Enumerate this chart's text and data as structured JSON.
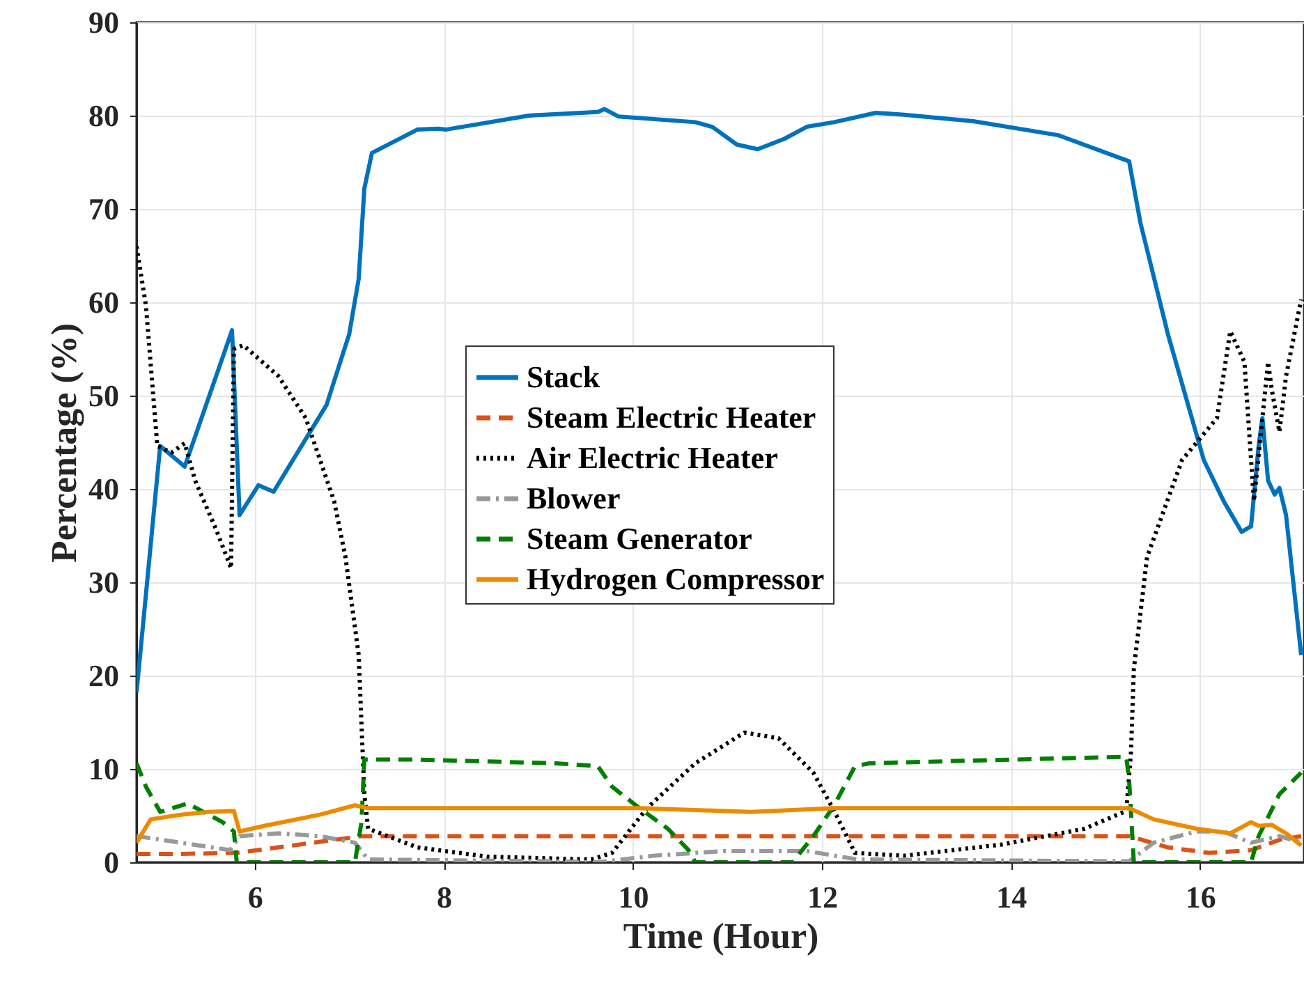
{
  "chart_data": {
    "type": "line",
    "xlabel": "Time (Hour)",
    "ylabel": "Percentage (%)",
    "xlim": [
      4.75,
      17.1
    ],
    "ylim": [
      0,
      90
    ],
    "xticks": [
      6,
      8,
      10,
      12,
      14,
      16
    ],
    "yticks": [
      0,
      10,
      20,
      30,
      40,
      50,
      60,
      70,
      80,
      90
    ],
    "grid": true,
    "legend": "center",
    "marker": "none",
    "series": [
      {
        "name": "Stack",
        "color": "#0072bd",
        "line_style": "solid",
        "x": [
          4.75,
          5.0,
          5.26,
          5.76,
          5.84,
          6.04,
          6.2,
          6.76,
          7.0,
          7.1,
          7.16,
          7.24,
          7.72,
          7.94,
          8.02,
          8.9,
          9.63,
          9.7,
          9.85,
          10.66,
          10.84,
          11.1,
          11.32,
          11.6,
          11.84,
          12.13,
          12.57,
          12.87,
          13.6,
          14.5,
          15.25,
          15.37,
          15.66,
          16.04,
          16.25,
          16.44,
          16.54,
          16.62,
          16.66,
          16.72,
          16.79,
          16.84,
          16.91,
          17.07
        ],
        "values": [
          18.2,
          44.6,
          42.4,
          57,
          37.2,
          40.4,
          39.7,
          49,
          56.6,
          62.5,
          72.2,
          76,
          78.5,
          78.6,
          78.5,
          80,
          80.4,
          80.7,
          79.9,
          79.3,
          78.8,
          76.9,
          76.4,
          77.5,
          78.8,
          79.3,
          80.3,
          80.1,
          79.4,
          77.9,
          75.1,
          68.5,
          56.6,
          43.1,
          38.7,
          35.4,
          36,
          44.6,
          47.6,
          40.9,
          39.4,
          40.1,
          37.2,
          22.2
        ]
      },
      {
        "name": "Steam Electric Heater",
        "color": "#d95319",
        "line_style": "dashed",
        "x": [
          4.75,
          5.22,
          5.81,
          6.25,
          6.84,
          7.13,
          7.28,
          15.25,
          15.66,
          16.1,
          16.54,
          16.84,
          17.07
        ],
        "values": [
          0.9,
          0.9,
          1.0,
          1.6,
          2.4,
          2.8,
          2.8,
          2.8,
          1.6,
          1.0,
          1.3,
          2.4,
          2.8
        ]
      },
      {
        "name": "Air Electric Heater",
        "color": "#000000",
        "line_style": "dotted",
        "x": [
          4.75,
          4.85,
          4.97,
          5.12,
          5.26,
          5.37,
          5.59,
          5.75,
          5.78,
          5.88,
          6.25,
          6.54,
          6.84,
          6.96,
          7.1,
          7.16,
          7.2,
          7.72,
          8.46,
          9.56,
          9.78,
          10.15,
          10.66,
          11.18,
          11.54,
          11.91,
          12.13,
          12.35,
          12.87,
          13.9,
          14.78,
          15.22,
          15.27,
          15.3,
          15.44,
          15.81,
          16.18,
          16.32,
          16.47,
          16.54,
          16.57,
          16.66,
          16.72,
          16.76,
          16.84,
          16.91,
          17.07
        ],
        "values": [
          66,
          59.6,
          44.6,
          43.9,
          44.9,
          40.9,
          35.7,
          31.5,
          55,
          55.4,
          52.1,
          47.6,
          38.7,
          32.7,
          22.2,
          7.3,
          3.6,
          1.6,
          0.6,
          0.3,
          1.0,
          5.8,
          10.6,
          13.9,
          13.3,
          9.6,
          5.5,
          1.0,
          0.7,
          1.9,
          3.6,
          5.5,
          11.8,
          20.7,
          32.7,
          43.1,
          47.6,
          56.9,
          53.6,
          43.1,
          38.7,
          47.6,
          53.6,
          50.6,
          46.1,
          52.1,
          60.3
        ]
      },
      {
        "name": "Blower",
        "color": "#999999",
        "line_style": "dashdot",
        "x": [
          4.75,
          5.22,
          5.74,
          5.84,
          6.25,
          6.69,
          7.06,
          7.2,
          9.19,
          9.63,
          10.22,
          10.96,
          11.84,
          12.38,
          15.25,
          15.51,
          15.96,
          16.25,
          16.54,
          16.84,
          17.07
        ],
        "values": [
          2.8,
          2.1,
          1.3,
          2.8,
          3.1,
          2.8,
          2.1,
          0.3,
          0.1,
          0,
          0.7,
          1.2,
          1.2,
          0.3,
          0.1,
          2.1,
          3.3,
          3.3,
          2.1,
          2.8,
          2.1
        ]
      },
      {
        "name": "Steam Generator",
        "color": "#008000",
        "line_style": "dashed",
        "x": [
          4.75,
          4.85,
          5.0,
          5.29,
          5.66,
          5.78,
          5.81,
          7.06,
          7.13,
          7.16,
          7.72,
          9.19,
          9.63,
          9.78,
          10.07,
          10.37,
          10.59,
          10.66,
          11.69,
          11.91,
          12.13,
          12.35,
          12.5,
          13.6,
          15.22,
          15.25,
          15.3,
          16.54,
          16.62,
          16.84,
          17.07
        ],
        "values": [
          10.6,
          8.1,
          5.4,
          6.3,
          4.3,
          3.3,
          0,
          0,
          4.3,
          11,
          11,
          10.6,
          10.3,
          8.1,
          5.8,
          3.6,
          1.3,
          0,
          0,
          2.8,
          6.1,
          10.3,
          10.6,
          10.9,
          11.3,
          8.8,
          0,
          0,
          2.8,
          7.3,
          9.6
        ]
      },
      {
        "name": "Hydrogen Compressor",
        "color": "#ed8b00",
        "line_style": "solid",
        "x": [
          4.75,
          4.9,
          5.22,
          5.51,
          5.78,
          5.84,
          6.1,
          6.69,
          7.06,
          7.2,
          9.19,
          10.07,
          11.25,
          12.13,
          15.25,
          15.51,
          15.96,
          16.32,
          16.54,
          16.62,
          16.76,
          16.91,
          17.07
        ],
        "values": [
          2.1,
          4.6,
          5.1,
          5.4,
          5.5,
          3.3,
          3.9,
          5.1,
          6.1,
          5.8,
          5.8,
          5.8,
          5.4,
          5.8,
          5.8,
          4.6,
          3.6,
          3.1,
          4.3,
          3.9,
          4.0,
          3.1,
          1.8
        ]
      }
    ]
  }
}
